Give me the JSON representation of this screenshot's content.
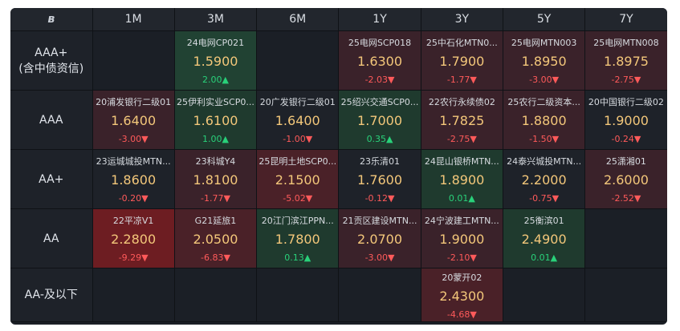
{
  "header": {
    "logo": "ʙ",
    "tenors": [
      "1M",
      "3M",
      "6M",
      "1Y",
      "3Y",
      "5Y",
      "7Y"
    ]
  },
  "rows": [
    {
      "label": [
        "AAA+",
        "(含中债资信)"
      ],
      "cells": [
        null,
        {
          "name": "24电网CP021",
          "yield": "1.5900",
          "change": "2.00▲",
          "dir": "up",
          "shade": "up2"
        },
        null,
        {
          "name": "25电网SCP018",
          "yield": "1.6300",
          "change": "-2.03▼",
          "dir": "dn",
          "shade": "dn1"
        },
        {
          "name": "25中石化MTN0...",
          "yield": "1.7900",
          "change": "-1.77▼",
          "dir": "dn",
          "shade": "dn1"
        },
        {
          "name": "25电网MTN003",
          "yield": "1.8950",
          "change": "-3.00▼",
          "dir": "dn",
          "shade": "dn1"
        },
        {
          "name": "25电网MTN008",
          "yield": "1.8975",
          "change": "-2.75▼",
          "dir": "dn",
          "shade": "dn1"
        }
      ]
    },
    {
      "label": [
        "AAA"
      ],
      "cells": [
        {
          "name": "20浦发银行二级01",
          "yield": "1.6400",
          "change": "-3.00▼",
          "dir": "dn",
          "shade": "dn1"
        },
        {
          "name": "25伊利实业SCP0...",
          "yield": "1.6100",
          "change": "1.00▲",
          "dir": "up",
          "shade": "up1"
        },
        {
          "name": "20广发银行二级01",
          "yield": "1.6400",
          "change": "-1.00▼",
          "dir": "dn",
          "shade": "flat"
        },
        {
          "name": "25绍兴交通SCP0...",
          "yield": "1.7000",
          "change": "0.35▲",
          "dir": "up",
          "shade": "up1"
        },
        {
          "name": "22农行永续债02",
          "yield": "1.7825",
          "change": "-2.75▼",
          "dir": "dn",
          "shade": "dn1"
        },
        {
          "name": "25农行二级资本...",
          "yield": "1.8800",
          "change": "-1.50▼",
          "dir": "dn",
          "shade": "dn1"
        },
        {
          "name": "20中国银行二级02",
          "yield": "1.9000",
          "change": "-0.24▼",
          "dir": "dn",
          "shade": "flat"
        }
      ]
    },
    {
      "label": [
        "AA+"
      ],
      "cells": [
        {
          "name": "23运城城投MTN...",
          "yield": "1.8600",
          "change": "-0.20▼",
          "dir": "dn",
          "shade": "flat"
        },
        {
          "name": "23科城Y4",
          "yield": "1.8100",
          "change": "-1.77▼",
          "dir": "dn",
          "shade": "dn1"
        },
        {
          "name": "25昆明土地SCP0...",
          "yield": "2.1500",
          "change": "-5.02▼",
          "dir": "dn",
          "shade": "dn2"
        },
        {
          "name": "23乐清01",
          "yield": "1.7600",
          "change": "-0.12▼",
          "dir": "dn",
          "shade": "flat"
        },
        {
          "name": "24昆山银桥MTN...",
          "yield": "1.8900",
          "change": "0.01▲",
          "dir": "up",
          "shade": "up1"
        },
        {
          "name": "24泰兴城投MTN...",
          "yield": "2.2000",
          "change": "-0.75▼",
          "dir": "dn",
          "shade": "flat"
        },
        {
          "name": "25潇湘01",
          "yield": "2.6000",
          "change": "-2.52▼",
          "dir": "dn",
          "shade": "dn1"
        }
      ]
    },
    {
      "label": [
        "AA"
      ],
      "cells": [
        {
          "name": "22平凉V1",
          "yield": "2.2800",
          "change": "-9.29▼",
          "dir": "dn",
          "shade": "dn3"
        },
        {
          "name": "G21延旅1",
          "yield": "2.0500",
          "change": "-6.83▼",
          "dir": "dn",
          "shade": "dn2"
        },
        {
          "name": "20江门滨江PPN...",
          "yield": "1.7800",
          "change": "0.13▲",
          "dir": "up",
          "shade": "up1"
        },
        {
          "name": "21贡区建设MTN...",
          "yield": "2.0700",
          "change": "-3.00▼",
          "dir": "dn",
          "shade": "dn1"
        },
        {
          "name": "24宁波建工MTN...",
          "yield": "1.9000",
          "change": "-2.10▼",
          "dir": "dn",
          "shade": "dn1"
        },
        {
          "name": "25衡滨01",
          "yield": "2.4900",
          "change": "0.01▲",
          "dir": "up",
          "shade": "up1"
        },
        null
      ]
    },
    {
      "label": [
        "AA-及以下"
      ],
      "cells": [
        null,
        null,
        null,
        null,
        {
          "name": "20蒙开02",
          "yield": "2.4300",
          "change": "-4.68▼",
          "dir": "dn",
          "shade": "dn2"
        },
        null,
        null
      ]
    }
  ],
  "colors": {
    "yield": "#f3c77a",
    "up": "#29d17a",
    "down": "#ff5a5a",
    "background": "#1b1f26"
  }
}
